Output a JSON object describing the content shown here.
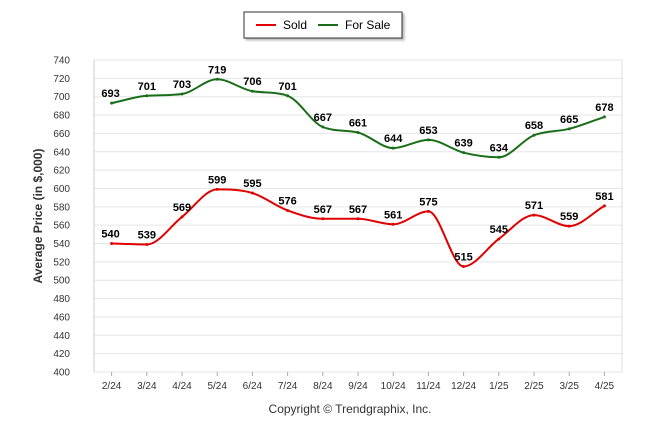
{
  "chart_data": {
    "type": "line",
    "title": "",
    "xlabel": "",
    "ylabel": "Average Price (in $,000)",
    "ylim": [
      400,
      740
    ],
    "ytick_step": 20,
    "grid": true,
    "legend_position": "top-center",
    "categories": [
      "2/24",
      "3/24",
      "4/24",
      "5/24",
      "6/24",
      "7/24",
      "8/24",
      "9/24",
      "10/24",
      "11/24",
      "12/24",
      "1/25",
      "2/25",
      "3/25",
      "4/25"
    ],
    "series": [
      {
        "name": "Sold",
        "color": "#e00000",
        "values": [
          540,
          539,
          569,
          599,
          595,
          576,
          567,
          567,
          561,
          575,
          515,
          545,
          571,
          559,
          581
        ]
      },
      {
        "name": "For Sale",
        "color": "#1a6e1a",
        "values": [
          693,
          701,
          703,
          719,
          706,
          701,
          667,
          661,
          644,
          653,
          639,
          634,
          658,
          665,
          678
        ]
      }
    ],
    "footer": "Copyright © Trendgraphix, Inc."
  }
}
